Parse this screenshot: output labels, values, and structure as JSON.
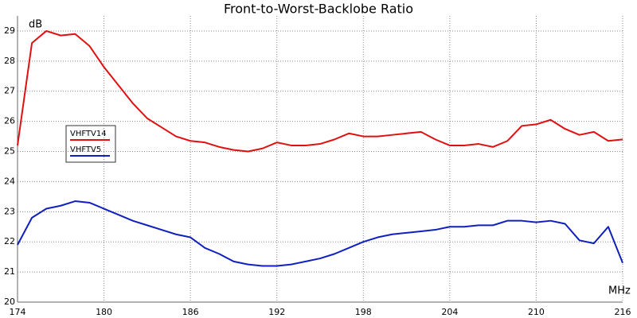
{
  "chart_data": {
    "type": "line",
    "title": "Front-to-Worst-Backlobe Ratio",
    "y_unit": "dB",
    "x_unit": "MHz",
    "x": [
      174,
      175,
      176,
      177,
      178,
      179,
      180,
      181,
      182,
      183,
      184,
      185,
      186,
      187,
      188,
      189,
      190,
      191,
      192,
      193,
      194,
      195,
      196,
      197,
      198,
      199,
      200,
      201,
      202,
      203,
      204,
      205,
      206,
      207,
      208,
      209,
      210,
      211,
      212,
      213,
      214,
      215,
      216
    ],
    "series": [
      {
        "name": "VHFTV14",
        "color": "#e01010",
        "values": [
          25.2,
          28.6,
          29.0,
          28.85,
          28.9,
          28.5,
          27.8,
          27.2,
          26.6,
          26.1,
          25.8,
          25.5,
          25.35,
          25.3,
          25.15,
          25.05,
          25.0,
          25.1,
          25.3,
          25.2,
          25.2,
          25.25,
          25.4,
          25.6,
          25.5,
          25.5,
          25.55,
          25.6,
          25.65,
          25.4,
          25.2,
          25.2,
          25.25,
          25.15,
          25.35,
          25.85,
          25.9,
          26.05,
          25.75,
          25.55,
          25.65,
          25.35,
          25.4
        ]
      },
      {
        "name": "VHFTV5",
        "color": "#1020c0",
        "values": [
          21.9,
          22.8,
          23.1,
          23.2,
          23.35,
          23.3,
          23.1,
          22.9,
          22.7,
          22.55,
          22.4,
          22.25,
          22.15,
          21.8,
          21.6,
          21.35,
          21.25,
          21.2,
          21.2,
          21.25,
          21.35,
          21.45,
          21.6,
          21.8,
          22.0,
          22.15,
          22.25,
          22.3,
          22.35,
          22.4,
          22.5,
          22.5,
          22.55,
          22.55,
          22.7,
          22.7,
          22.65,
          22.7,
          22.6,
          22.05,
          21.95,
          22.5,
          21.3
        ]
      }
    ],
    "xlim": [
      174,
      216
    ],
    "ylim": [
      20,
      29.5
    ],
    "xticks": [
      174,
      180,
      186,
      192,
      198,
      204,
      210,
      216
    ],
    "yticks": [
      20,
      21,
      22,
      23,
      24,
      25,
      26,
      27,
      28,
      29
    ],
    "grid": true
  }
}
